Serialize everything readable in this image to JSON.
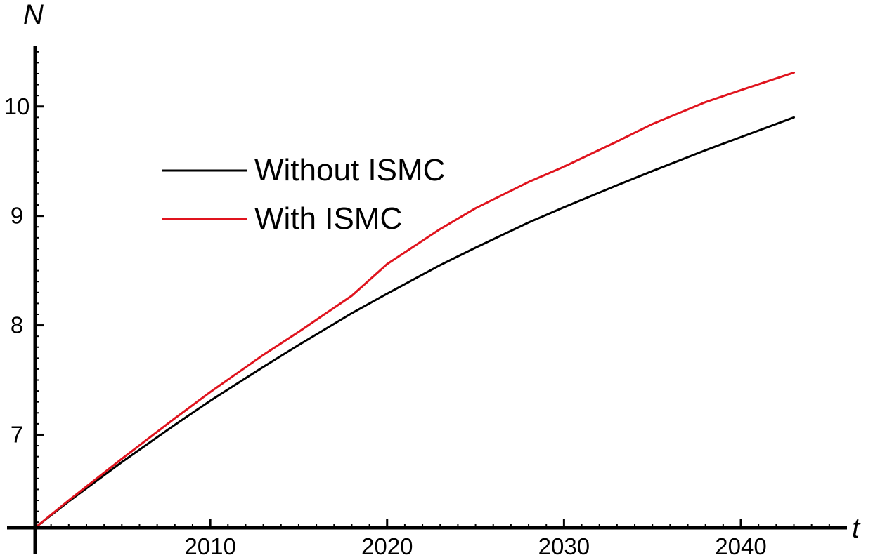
{
  "chart_data": {
    "type": "line",
    "xlabel": "t",
    "ylabel": "N",
    "xlim": [
      2000.1,
      2046
    ],
    "ylim": [
      6.15,
      10.55
    ],
    "x_ticks": [
      2010,
      2020,
      2030,
      2040
    ],
    "y_ticks": [
      7,
      8,
      9,
      10
    ],
    "x_tick_labels": [
      "2010",
      "2020",
      "2030",
      "2040"
    ],
    "y_tick_labels": [
      "7",
      "8",
      "9",
      "10"
    ],
    "grid": false,
    "legend_position": "upper-left",
    "series": [
      {
        "name": "Without ISMC",
        "color": "#000000",
        "x": [
          2000.1,
          2002,
          2005,
          2008,
          2010,
          2013,
          2015,
          2018,
          2020,
          2023,
          2025,
          2028,
          2030,
          2033,
          2035,
          2038,
          2040,
          2043
        ],
        "y": [
          6.15,
          6.39,
          6.75,
          7.09,
          7.31,
          7.62,
          7.82,
          8.11,
          8.29,
          8.55,
          8.71,
          8.94,
          9.08,
          9.28,
          9.41,
          9.6,
          9.72,
          9.9
        ]
      },
      {
        "name": "With ISMC",
        "color": "#e0141e",
        "x": [
          2000.1,
          2002,
          2005,
          2008,
          2010,
          2013,
          2015,
          2018,
          2020,
          2023,
          2025,
          2028,
          2030,
          2033,
          2035,
          2038,
          2040,
          2043
        ],
        "y": [
          6.15,
          6.4,
          6.78,
          7.15,
          7.39,
          7.73,
          7.94,
          8.27,
          8.56,
          8.88,
          9.07,
          9.31,
          9.45,
          9.68,
          9.84,
          10.04,
          10.15,
          10.31
        ]
      }
    ]
  }
}
